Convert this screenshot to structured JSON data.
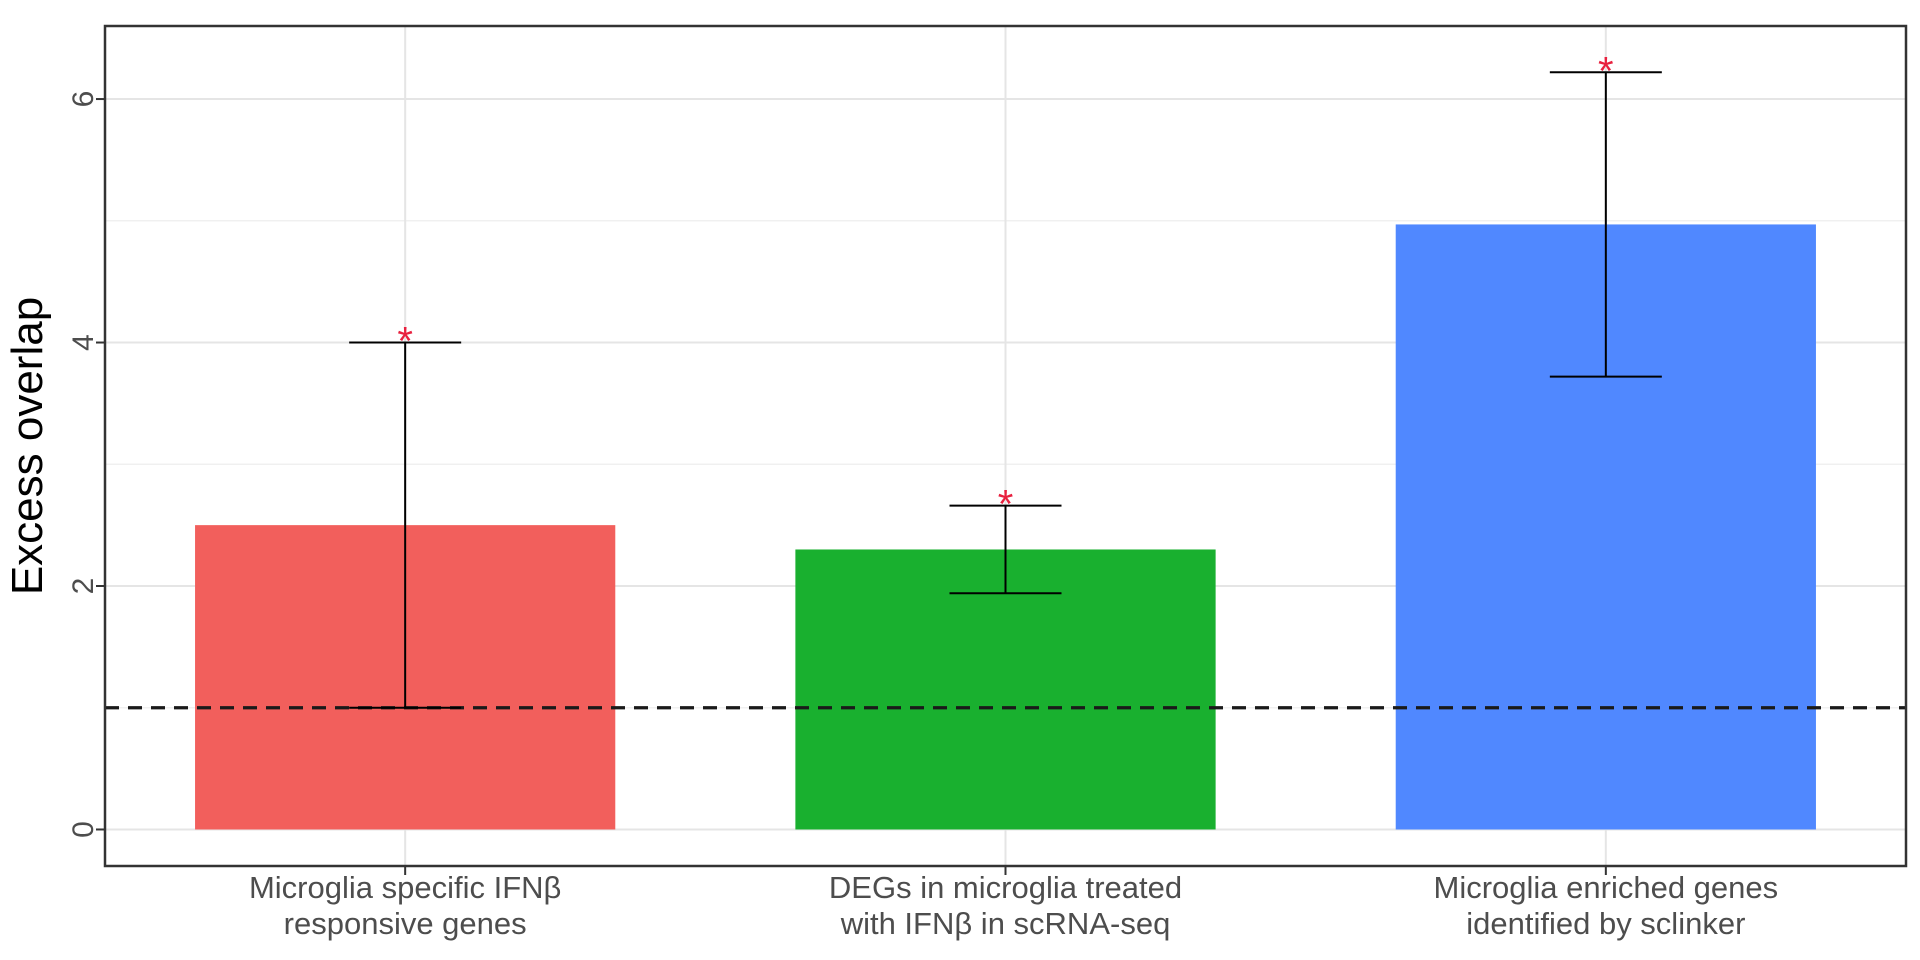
{
  "chart_data": {
    "type": "bar",
    "title": "",
    "xlabel": "",
    "ylabel": "Excess overlap",
    "ylim": [
      -0.3,
      6.6
    ],
    "yticks": [
      0,
      2,
      4,
      6
    ],
    "grid": true,
    "reference_line": {
      "y": 1,
      "style": "dashed",
      "color": "#1a1a1a"
    },
    "categories": [
      [
        "Microglia specific IFNβ",
        "responsive genes"
      ],
      [
        "DEGs in microglia treated",
        "with IFNβ in scRNA-seq"
      ],
      [
        "Microglia enriched genes",
        "identified by sclinker"
      ]
    ],
    "values": [
      2.5,
      2.3,
      4.97
    ],
    "error_low": [
      1.0,
      1.94,
      3.72
    ],
    "error_high": [
      4.0,
      2.66,
      6.22
    ],
    "significance": [
      "*",
      "*",
      "*"
    ],
    "colors": [
      "#f25f5c",
      "#19b02f",
      "#5088ff"
    ]
  }
}
